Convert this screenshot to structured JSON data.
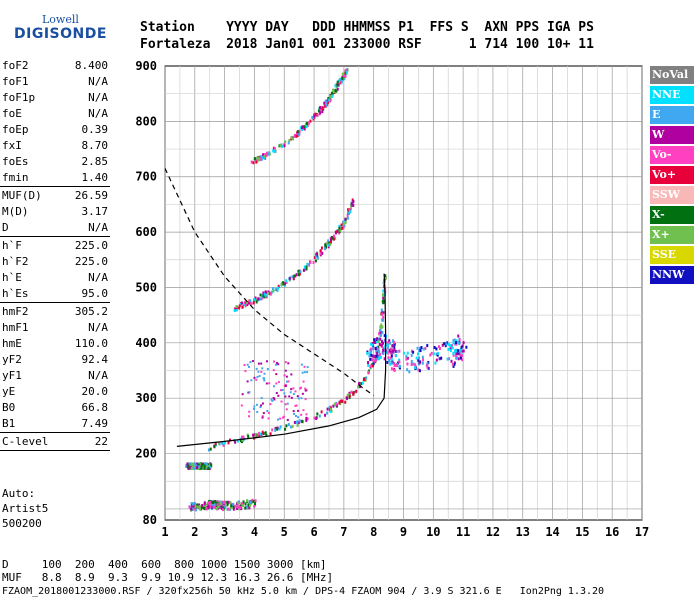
{
  "logo": {
    "top": "Lowell",
    "bottom": "DIGISONDE"
  },
  "header": {
    "line1": "Station    YYYY DAY   DDD HHMMSS P1  FFS S  AXN PPS IGA PS",
    "line2": "Fortaleza  2018 Jan01 001 233000 RSF      1 714 100 10+ 11"
  },
  "params": [
    [
      {
        "label": "foF2",
        "value": "8.400"
      },
      {
        "label": "foF1",
        "value": "N/A"
      },
      {
        "label": "foF1p",
        "value": "N/A"
      },
      {
        "label": "foE",
        "value": "N/A"
      },
      {
        "label": "foEp",
        "value": "0.39"
      },
      {
        "label": "fxI",
        "value": "8.70"
      },
      {
        "label": "foEs",
        "value": "2.85"
      },
      {
        "label": "fmin",
        "value": "1.40"
      }
    ],
    [
      {
        "label": "MUF(D)",
        "value": "26.59"
      },
      {
        "label": "M(D)",
        "value": "3.17"
      },
      {
        "label": "D",
        "value": "N/A"
      }
    ],
    [
      {
        "label": "h`F",
        "value": "225.0"
      },
      {
        "label": "h`F2",
        "value": "225.0"
      },
      {
        "label": "h`E",
        "value": "N/A"
      },
      {
        "label": "h`Es",
        "value": "95.0"
      }
    ],
    [
      {
        "label": "hmF2",
        "value": "305.2"
      },
      {
        "label": "hmF1",
        "value": "N/A"
      },
      {
        "label": "hmE",
        "value": "110.0"
      },
      {
        "label": "yF2",
        "value": "92.4"
      },
      {
        "label": "yF1",
        "value": "N/A"
      },
      {
        "label": "yE",
        "value": "20.0"
      },
      {
        "label": "B0",
        "value": "66.8"
      },
      {
        "label": "B1",
        "value": "7.49"
      }
    ],
    [
      {
        "label": "C-level",
        "value": "22"
      }
    ]
  ],
  "auto": {
    "l1": "Auto:",
    "l2": "Artist5",
    "l3": "500200"
  },
  "legend": [
    {
      "label": "NoVal",
      "color": "#808080"
    },
    {
      "label": "NNE",
      "color": "#00e0ff"
    },
    {
      "label": "E",
      "color": "#40a8f0"
    },
    {
      "label": "W",
      "color": "#b000a0"
    },
    {
      "label": "Vo-",
      "color": "#ff40c0"
    },
    {
      "label": "Vo+",
      "color": "#e8003a"
    },
    {
      "label": "SSW",
      "color": "#f8b8b8"
    },
    {
      "label": "X-",
      "color": "#007010"
    },
    {
      "label": "X+",
      "color": "#70c050"
    },
    {
      "label": "SSE",
      "color": "#d8d800"
    },
    {
      "label": "NNW",
      "color": "#1010c0"
    }
  ],
  "footer": {
    "line1": "D     100  200  400  600  800 1000 1500 3000 [km]",
    "line2": "MUF   8.8  8.9  9.3  9.9 10.9 12.3 16.3 26.6 [MHz]",
    "line3": "FZAOM_2018001233000.RSF / 320fx256h 50 kHz 5.0 km / DPS-4 FZAOM 904 / 3.9 S 321.6 E   Ion2Png 1.3.20"
  },
  "chart_data": {
    "type": "scatter",
    "title": "",
    "xlabel": "",
    "ylabel": "",
    "xlim": [
      1,
      17
    ],
    "ylim": [
      80,
      900
    ],
    "xticks": [
      1,
      2,
      3,
      4,
      5,
      6,
      7,
      8,
      9,
      10,
      11,
      12,
      13,
      14,
      15,
      16,
      17
    ],
    "yticks": [
      80,
      200,
      300,
      400,
      500,
      600,
      700,
      800,
      900
    ],
    "grid": true,
    "traces": [
      {
        "kind": "o-trace",
        "points": [
          [
            3.9,
            730
          ],
          [
            4.5,
            745
          ],
          [
            5.2,
            770
          ],
          [
            5.8,
            800
          ],
          [
            6.3,
            830
          ],
          [
            6.8,
            870
          ],
          [
            7.1,
            895
          ]
        ]
      },
      {
        "kind": "o-trace",
        "points": [
          [
            3.3,
            465
          ],
          [
            4.0,
            480
          ],
          [
            4.7,
            500
          ],
          [
            5.4,
            525
          ],
          [
            6.0,
            555
          ],
          [
            6.5,
            585
          ],
          [
            7.0,
            620
          ],
          [
            7.3,
            660
          ]
        ]
      },
      {
        "kind": "o-trace",
        "points": [
          [
            2.4,
            212
          ],
          [
            3.5,
            228
          ],
          [
            4.5,
            242
          ],
          [
            5.5,
            258
          ],
          [
            6.3,
            275
          ],
          [
            7.0,
            300
          ],
          [
            7.6,
            330
          ],
          [
            8.0,
            370
          ],
          [
            8.2,
            420
          ],
          [
            8.3,
            480
          ],
          [
            8.35,
            530
          ]
        ]
      },
      {
        "kind": "es-trace",
        "points": [
          [
            1.7,
            180
          ],
          [
            2.5,
            180
          ]
        ]
      },
      {
        "kind": "spread",
        "points": [
          [
            7.8,
            380
          ],
          [
            8.3,
            400
          ],
          [
            8.8,
            370
          ],
          [
            10.5,
            380
          ],
          [
            11.0,
            395
          ]
        ]
      },
      {
        "kind": "e-trace",
        "points": [
          [
            1.8,
            105
          ],
          [
            2.5,
            110
          ],
          [
            3.0,
            108
          ],
          [
            4.0,
            112
          ]
        ]
      }
    ],
    "profile": [
      [
        1.4,
        213
      ],
      [
        3.0,
        222
      ],
      [
        5.0,
        235
      ],
      [
        6.5,
        250
      ],
      [
        7.5,
        265
      ],
      [
        8.1,
        280
      ],
      [
        8.35,
        300
      ],
      [
        8.4,
        350
      ],
      [
        8.4,
        420
      ],
      [
        8.38,
        490
      ],
      [
        8.35,
        525
      ]
    ],
    "muf_curve": [
      [
        1.0,
        715
      ],
      [
        2.0,
        600
      ],
      [
        3.0,
        520
      ],
      [
        4.0,
        460
      ],
      [
        5.0,
        415
      ],
      [
        6.0,
        380
      ],
      [
        7.0,
        345
      ],
      [
        7.6,
        320
      ],
      [
        8.0,
        305
      ]
    ]
  }
}
